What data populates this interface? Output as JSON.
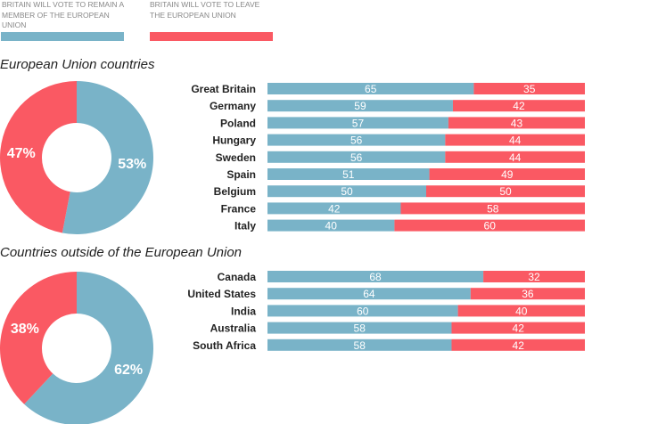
{
  "legend": {
    "remain_label": "BRITAIN WILL VOTE TO REMAIN A MEMBER OF THE EUROPEAN UNION",
    "remain_label_lines": [
      "BRITAIN WILL VOTE TO REMAIN A",
      "MEMBER OF THE EUROPEAN",
      "UNION"
    ],
    "leave_label": "BRITAIN WILL VOTE TO LEAVE THE EUROPEAN UNION",
    "leave_label_lines": [
      "BRITAIN WILL VOTE TO LEAVE",
      "THE EUROPEAN UNION"
    ]
  },
  "colors": {
    "remain": "#79b3c8",
    "leave": "#fa5963"
  },
  "chart_data": [
    {
      "type": "pie",
      "title": "European Union countries",
      "categories": [
        "Remain",
        "Leave"
      ],
      "values": [
        53,
        47
      ],
      "labels": [
        "53%",
        "47%"
      ]
    },
    {
      "type": "bar",
      "orientation": "horizontal-stacked-100",
      "title": "European Union countries",
      "categories": [
        "Great Britain",
        "Germany",
        "Poland",
        "Hungary",
        "Sweden",
        "Spain",
        "Belgium",
        "France",
        "Italy"
      ],
      "series": [
        {
          "name": "Remain",
          "values": [
            65,
            59,
            57,
            56,
            56,
            51,
            50,
            42,
            40
          ]
        },
        {
          "name": "Leave",
          "values": [
            35,
            42,
            43,
            44,
            44,
            49,
            50,
            58,
            60
          ]
        }
      ]
    },
    {
      "type": "pie",
      "title": "Countries outside of the European Union",
      "categories": [
        "Remain",
        "Leave"
      ],
      "values": [
        62,
        38
      ],
      "labels": [
        "62%",
        "38%"
      ]
    },
    {
      "type": "bar",
      "orientation": "horizontal-stacked-100",
      "title": "Countries outside of the European Union",
      "categories": [
        "Canada",
        "United States",
        "India",
        "Australia",
        "South Africa"
      ],
      "series": [
        {
          "name": "Remain",
          "values": [
            68,
            64,
            60,
            58,
            58
          ]
        },
        {
          "name": "Leave",
          "values": [
            32,
            36,
            40,
            42,
            42
          ]
        }
      ]
    }
  ]
}
